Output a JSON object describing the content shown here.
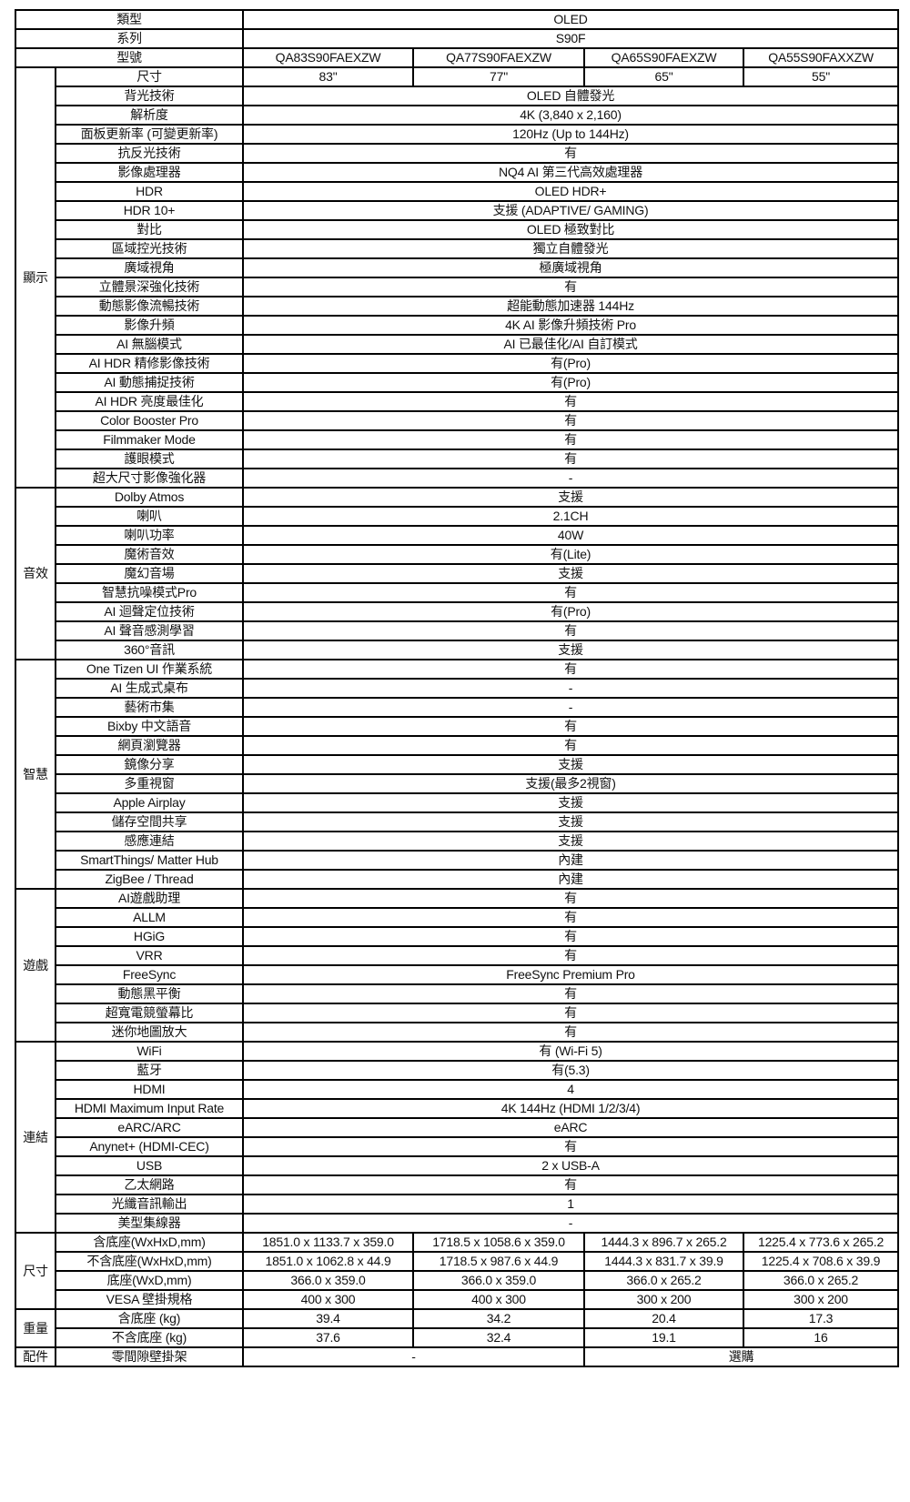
{
  "header": {
    "type": {
      "label": "類型",
      "value": "OLED"
    },
    "series": {
      "label": "系列",
      "value": "S90F"
    },
    "model": {
      "label": "型號",
      "values": [
        "QA83S90FAEXZW",
        "QA77S90FAEXZW",
        "QA65S90FAEXZW",
        "QA55S90FAXXZW"
      ]
    }
  },
  "groups": [
    {
      "category": "顯示",
      "rows": [
        {
          "label": "尺寸",
          "values": [
            "83\"",
            "77\"",
            "65\"",
            "55\""
          ]
        },
        {
          "label": "背光技術",
          "value": "OLED 自體發光"
        },
        {
          "label": "解析度",
          "value": "4K (3,840 x 2,160)"
        },
        {
          "label": "面板更新率 (可變更新率)",
          "value": "120Hz (Up to 144Hz)"
        },
        {
          "label": "抗反光技術",
          "value": "有"
        },
        {
          "label": "影像處理器",
          "value": "NQ4 AI 第三代高效處理器"
        },
        {
          "label": "HDR",
          "value": "OLED HDR+"
        },
        {
          "label": "HDR 10+",
          "value": "支援 (ADAPTIVE/ GAMING)"
        },
        {
          "label": "對比",
          "value": "OLED 極致對比"
        },
        {
          "label": "區域控光技術",
          "value": "獨立自體發光"
        },
        {
          "label": "廣域視角",
          "value": "極廣域視角"
        },
        {
          "label": "立體景深強化技術",
          "value": "有"
        },
        {
          "label": "動態影像流暢技術",
          "value": "超能動態加速器 144Hz"
        },
        {
          "label": "影像升頻",
          "value": "4K AI 影像升頻技術 Pro"
        },
        {
          "label": "AI 無腦模式",
          "value": "AI 已最佳化/AI 自訂模式"
        },
        {
          "label": "AI HDR 精修影像技術",
          "value": "有(Pro)"
        },
        {
          "label": "AI 動態捕捉技術",
          "value": "有(Pro)"
        },
        {
          "label": "AI HDR 亮度最佳化",
          "value": "有"
        },
        {
          "label": "Color Booster Pro",
          "value": "有"
        },
        {
          "label": "Filmmaker Mode",
          "value": "有"
        },
        {
          "label": "護眼模式",
          "value": "有"
        },
        {
          "label": "超大尺寸影像強化器",
          "value": "-"
        }
      ]
    },
    {
      "category": "音效",
      "rows": [
        {
          "label": "Dolby Atmos",
          "value": "支援"
        },
        {
          "label": "喇叭",
          "value": "2.1CH"
        },
        {
          "label": "喇叭功率",
          "value": "40W"
        },
        {
          "label": "魔術音效",
          "value": "有(Lite)"
        },
        {
          "label": "魔幻音場",
          "value": "支援"
        },
        {
          "label": "智慧抗噪模式Pro",
          "value": "有"
        },
        {
          "label": "AI 迴聲定位技術",
          "value": "有(Pro)"
        },
        {
          "label": "AI 聲音感測學習",
          "value": "有"
        },
        {
          "label": "360°音訊",
          "value": "支援"
        }
      ]
    },
    {
      "category": "智慧",
      "rows": [
        {
          "label": "One Tizen UI 作業系統",
          "value": "有"
        },
        {
          "label": "AI 生成式桌布",
          "value": "-"
        },
        {
          "label": "藝術市集",
          "value": "-"
        },
        {
          "label": "Bixby 中文語音",
          "value": "有"
        },
        {
          "label": "網頁瀏覽器",
          "value": "有"
        },
        {
          "label": "鏡像分享",
          "value": "支援"
        },
        {
          "label": "多重視窗",
          "value": "支援(最多2視窗)"
        },
        {
          "label": "Apple Airplay",
          "value": "支援"
        },
        {
          "label": "儲存空間共享",
          "value": "支援"
        },
        {
          "label": "感應連結",
          "value": "支援"
        },
        {
          "label": "SmartThings/ Matter Hub",
          "value": "內建"
        },
        {
          "label": "ZigBee / Thread",
          "value": "內建"
        }
      ]
    },
    {
      "category": "遊戲",
      "rows": [
        {
          "label": "AI遊戲助理",
          "value": "有"
        },
        {
          "label": "ALLM",
          "value": "有"
        },
        {
          "label": "HGiG",
          "value": "有"
        },
        {
          "label": "VRR",
          "value": "有"
        },
        {
          "label": "FreeSync",
          "value": "FreeSync Premium Pro"
        },
        {
          "label": "動態黑平衡",
          "value": "有"
        },
        {
          "label": "超寬電競螢幕比",
          "value": "有"
        },
        {
          "label": "迷你地圖放大",
          "value": "有"
        }
      ]
    },
    {
      "category": "連結",
      "rows": [
        {
          "label": "WiFi",
          "value": "有 (Wi-Fi 5)"
        },
        {
          "label": "藍牙",
          "value": "有(5.3)"
        },
        {
          "label": "HDMI",
          "value": "4"
        },
        {
          "label": "HDMI Maximum Input Rate",
          "value": "4K 144Hz (HDMI 1/2/3/4)"
        },
        {
          "label": "eARC/ARC",
          "value": "eARC"
        },
        {
          "label": "Anynet+ (HDMI-CEC)",
          "value": "有"
        },
        {
          "label": "USB",
          "value": "2 x USB-A"
        },
        {
          "label": "乙太網路",
          "value": "有"
        },
        {
          "label": "光纖音訊輸出",
          "value": "1"
        },
        {
          "label": "美型集線器",
          "value": "-"
        }
      ]
    },
    {
      "category": "尺寸",
      "rows": [
        {
          "label": "含底座(WxHxD,mm)",
          "values": [
            "1851.0 x 1133.7 x 359.0",
            "1718.5 x 1058.6 x 359.0",
            "1444.3 x 896.7 x 265.2",
            "1225.4 x 773.6 x 265.2"
          ]
        },
        {
          "label": "不含底座(WxHxD,mm)",
          "values": [
            "1851.0 x 1062.8 x 44.9",
            "1718.5 x 987.6 x 44.9",
            "1444.3 x 831.7 x 39.9",
            "1225.4 x 708.6 x 39.9"
          ]
        },
        {
          "label": "底座(WxD,mm)",
          "values": [
            "366.0 x 359.0",
            "366.0 x 359.0",
            "366.0 x 265.2",
            "366.0 x 265.2"
          ]
        },
        {
          "label": "VESA 壁掛規格",
          "values": [
            "400 x 300",
            "400 x 300",
            "300 x 200",
            "300 x 200"
          ]
        }
      ]
    },
    {
      "category": "重量",
      "rows": [
        {
          "label": "含底座 (kg)",
          "values": [
            "39.4",
            "34.2",
            "20.4",
            "17.3"
          ]
        },
        {
          "label": "不含底座 (kg)",
          "values": [
            "37.6",
            "32.4",
            "19.1",
            "16"
          ]
        }
      ]
    },
    {
      "category": "配件",
      "rows": [
        {
          "label": "零間隙壁掛架",
          "pair": [
            "-",
            "選購"
          ]
        }
      ]
    }
  ]
}
